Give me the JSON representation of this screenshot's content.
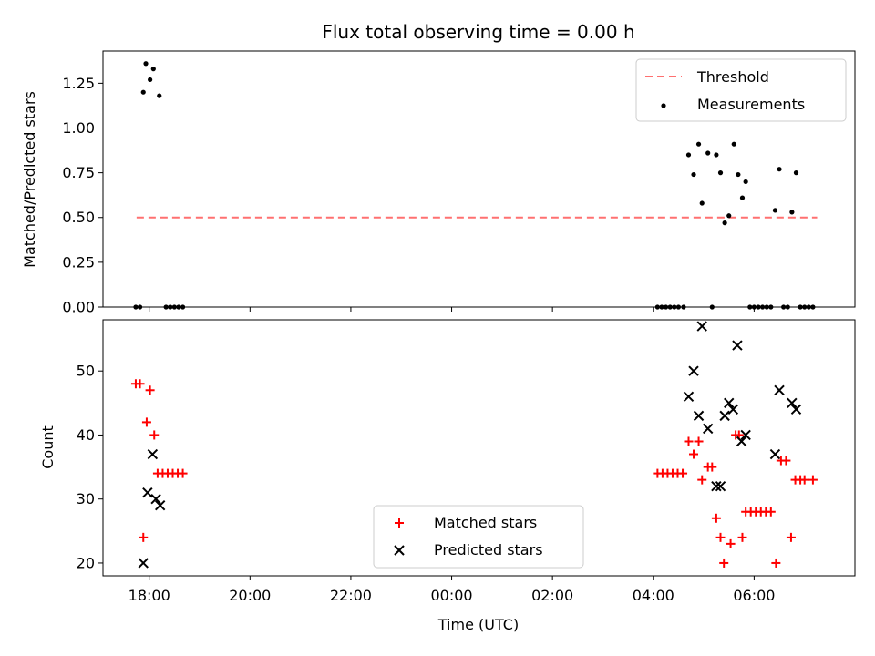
{
  "chart_data": [
    {
      "type": "scatter",
      "title": "Flux total observing time = 0.00 h",
      "ylabel": "Matched/Predicted stars",
      "xlabel": "",
      "ylim": [
        0.0,
        1.43
      ],
      "yticks": [
        "0.00",
        "0.25",
        "0.50",
        "0.75",
        "1.00",
        "1.25"
      ],
      "legend_position": "top-right",
      "threshold": {
        "name": "Threshold",
        "value": 0.5,
        "x_start": "17:45",
        "x_end": "07:15",
        "color": "#ff7070"
      },
      "series": [
        {
          "name": "Measurements",
          "marker": "dot",
          "color": "#000000",
          "points": [
            [
              "17:44",
              0.0
            ],
            [
              "17:49",
              0.0
            ],
            [
              "17:53",
              1.2
            ],
            [
              "17:56",
              1.36
            ],
            [
              "18:01",
              1.27
            ],
            [
              "18:05",
              1.33
            ],
            [
              "18:12",
              1.18
            ],
            [
              "18:20",
              0.0
            ],
            [
              "18:25",
              0.0
            ],
            [
              "18:30",
              0.0
            ],
            [
              "18:35",
              0.0
            ],
            [
              "18:40",
              0.0
            ],
            [
              "04:05",
              0.0
            ],
            [
              "04:10",
              0.0
            ],
            [
              "04:15",
              0.0
            ],
            [
              "04:20",
              0.0
            ],
            [
              "04:25",
              0.0
            ],
            [
              "04:30",
              0.0
            ],
            [
              "04:36",
              0.0
            ],
            [
              "04:42",
              0.85
            ],
            [
              "04:48",
              0.74
            ],
            [
              "04:54",
              0.91
            ],
            [
              "04:58",
              0.58
            ],
            [
              "05:05",
              0.86
            ],
            [
              "05:10",
              0.0
            ],
            [
              "05:15",
              0.85
            ],
            [
              "05:20",
              0.75
            ],
            [
              "05:25",
              0.47
            ],
            [
              "05:30",
              0.51
            ],
            [
              "05:36",
              0.91
            ],
            [
              "05:41",
              0.74
            ],
            [
              "05:46",
              0.61
            ],
            [
              "05:50",
              0.7
            ],
            [
              "05:55",
              0.0
            ],
            [
              "06:00",
              0.0
            ],
            [
              "06:05",
              0.0
            ],
            [
              "06:10",
              0.0
            ],
            [
              "06:15",
              0.0
            ],
            [
              "06:20",
              0.0
            ],
            [
              "06:25",
              0.54
            ],
            [
              "06:30",
              0.77
            ],
            [
              "06:35",
              0.0
            ],
            [
              "06:40",
              0.0
            ],
            [
              "06:45",
              0.53
            ],
            [
              "06:50",
              0.75
            ],
            [
              "06:55",
              0.0
            ],
            [
              "07:00",
              0.0
            ],
            [
              "07:05",
              0.0
            ],
            [
              "07:10",
              0.0
            ]
          ]
        }
      ]
    },
    {
      "type": "scatter",
      "title": "",
      "xlabel": "Time (UTC)",
      "ylabel": "Count",
      "ylim": [
        18.0,
        58.0
      ],
      "yticks": [
        "20",
        "30",
        "40",
        "50"
      ],
      "xlim": [
        "17:05",
        "08:00"
      ],
      "xticks": [
        "18:00",
        "20:00",
        "22:00",
        "00:00",
        "02:00",
        "04:00",
        "06:00"
      ],
      "legend_position": "lower-center",
      "series": [
        {
          "name": "Matched stars",
          "marker": "plus",
          "color": "#ff0000",
          "points": [
            [
              "17:44",
              48
            ],
            [
              "17:49",
              48
            ],
            [
              "17:53",
              24
            ],
            [
              "17:57",
              42
            ],
            [
              "18:01",
              47
            ],
            [
              "18:06",
              40
            ],
            [
              "18:10",
              34
            ],
            [
              "18:16",
              34
            ],
            [
              "18:22",
              34
            ],
            [
              "18:28",
              34
            ],
            [
              "18:34",
              34
            ],
            [
              "18:40",
              34
            ],
            [
              "04:05",
              34
            ],
            [
              "04:11",
              34
            ],
            [
              "04:17",
              34
            ],
            [
              "04:23",
              34
            ],
            [
              "04:29",
              34
            ],
            [
              "04:35",
              34
            ],
            [
              "04:42",
              39
            ],
            [
              "04:48",
              37
            ],
            [
              "04:54",
              39
            ],
            [
              "04:58",
              33
            ],
            [
              "05:05",
              35
            ],
            [
              "05:10",
              35
            ],
            [
              "05:15",
              27
            ],
            [
              "05:20",
              24
            ],
            [
              "05:24",
              20
            ],
            [
              "05:32",
              23
            ],
            [
              "05:38",
              40
            ],
            [
              "05:42",
              40
            ],
            [
              "05:46",
              24
            ],
            [
              "05:50",
              28
            ],
            [
              "05:56",
              28
            ],
            [
              "06:02",
              28
            ],
            [
              "06:08",
              28
            ],
            [
              "06:14",
              28
            ],
            [
              "06:20",
              28
            ],
            [
              "06:26",
              20
            ],
            [
              "06:32",
              36
            ],
            [
              "06:38",
              36
            ],
            [
              "06:44",
              24
            ],
            [
              "06:49",
              33
            ],
            [
              "06:55",
              33
            ],
            [
              "07:00",
              33
            ],
            [
              "07:10",
              33
            ]
          ]
        },
        {
          "name": "Predicted stars",
          "marker": "x",
          "color": "#000000",
          "points": [
            [
              "17:53",
              20
            ],
            [
              "17:58",
              31
            ],
            [
              "18:04",
              37
            ],
            [
              "18:08",
              30
            ],
            [
              "18:13",
              29
            ],
            [
              "04:42",
              46
            ],
            [
              "04:48",
              50
            ],
            [
              "04:54",
              43
            ],
            [
              "04:58",
              57
            ],
            [
              "05:05",
              41
            ],
            [
              "05:15",
              32
            ],
            [
              "05:20",
              32
            ],
            [
              "05:25",
              43
            ],
            [
              "05:30",
              45
            ],
            [
              "05:35",
              44
            ],
            [
              "05:40",
              54
            ],
            [
              "05:45",
              39
            ],
            [
              "05:50",
              40
            ],
            [
              "06:25",
              37
            ],
            [
              "06:30",
              47
            ],
            [
              "06:45",
              45
            ],
            [
              "06:50",
              44
            ]
          ]
        }
      ]
    }
  ]
}
